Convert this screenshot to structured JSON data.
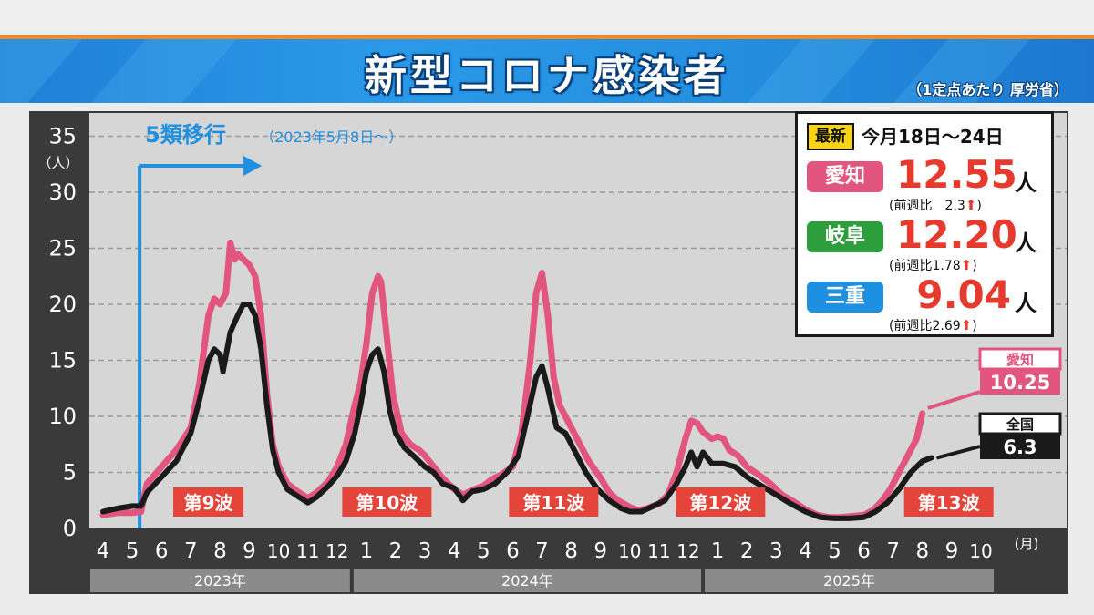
{
  "header": {
    "title": "新型コロナ感染者",
    "note": "（1定点あたり 厚労省）"
  },
  "info_box": {
    "latest_label": "最新",
    "period": "今月18日～24日",
    "unit": "人",
    "rows": [
      {
        "pref": "愛知",
        "value": "12.55",
        "week_label": "(前週比　2.3",
        "ratio": 2.3,
        "close": ")",
        "badge_color": "#e2557e"
      },
      {
        "pref": "岐阜",
        "value": "12.20",
        "week_label": "(前週比1.78",
        "ratio": 1.78,
        "close": ")",
        "badge_color": "#2e9d3b"
      },
      {
        "pref": "三重",
        "value": "9.04",
        "week_label": "(前週比2.69",
        "ratio": 2.69,
        "close": ")",
        "badge_color": "#1f8fe0"
      }
    ]
  },
  "chart_data": {
    "type": "line",
    "y_unit": "（人）",
    "x_unit": "(月)",
    "ylim": [
      0,
      35
    ],
    "yticks": [
      0,
      5,
      10,
      15,
      20,
      25,
      30,
      35
    ],
    "grid": true,
    "month_labels": [
      "4",
      "5",
      "6",
      "7",
      "8",
      "9",
      "10",
      "11",
      "12",
      "1",
      "2",
      "3",
      "4",
      "5",
      "6",
      "7",
      "8",
      "9",
      "10",
      "11",
      "12",
      "1",
      "2",
      "3",
      "4",
      "5",
      "6",
      "7",
      "8",
      "9",
      "10"
    ],
    "years": [
      {
        "label": "2023年",
        "start": 0,
        "end": 9
      },
      {
        "label": "2024年",
        "start": 9,
        "end": 21
      },
      {
        "label": "2025年",
        "start": 21,
        "end": 31
      }
    ],
    "annotation": {
      "title": "5類移行",
      "detail": "（2023年5月8日～）",
      "x": 1.25
    },
    "waves": [
      {
        "label": "第9波",
        "x": 3.6
      },
      {
        "label": "第10波",
        "x": 9.7
      },
      {
        "label": "第11波",
        "x": 15.4
      },
      {
        "label": "第12波",
        "x": 21.1
      },
      {
        "label": "第13波",
        "x": 28.9
      }
    ],
    "series": [
      {
        "name": "愛知",
        "color": "#e2557e",
        "end_label": "10.25",
        "points": [
          [
            0.0,
            1.2
          ],
          [
            0.5,
            1.4
          ],
          [
            1.0,
            1.4
          ],
          [
            1.3,
            1.5
          ],
          [
            1.5,
            4.0
          ],
          [
            2.0,
            5.5
          ],
          [
            2.5,
            7.0
          ],
          [
            3.0,
            9.0
          ],
          [
            3.3,
            13.0
          ],
          [
            3.6,
            19.0
          ],
          [
            3.8,
            20.5
          ],
          [
            4.0,
            20.0
          ],
          [
            4.2,
            21.0
          ],
          [
            4.35,
            25.5
          ],
          [
            4.5,
            24.0
          ],
          [
            4.6,
            24.5
          ],
          [
            4.8,
            24.0
          ],
          [
            5.0,
            23.5
          ],
          [
            5.2,
            22.5
          ],
          [
            5.4,
            19.0
          ],
          [
            5.6,
            12.0
          ],
          [
            5.8,
            7.5
          ],
          [
            6.0,
            5.5
          ],
          [
            6.3,
            4.0
          ],
          [
            6.7,
            3.2
          ],
          [
            7.0,
            2.7
          ],
          [
            7.3,
            3.2
          ],
          [
            7.7,
            4.2
          ],
          [
            8.0,
            5.5
          ],
          [
            8.3,
            7.5
          ],
          [
            8.6,
            11.0
          ],
          [
            8.8,
            13.0
          ],
          [
            9.0,
            16.5
          ],
          [
            9.2,
            21.0
          ],
          [
            9.4,
            22.5
          ],
          [
            9.5,
            22.0
          ],
          [
            9.7,
            17.0
          ],
          [
            9.9,
            12.0
          ],
          [
            10.2,
            8.5
          ],
          [
            10.5,
            7.5
          ],
          [
            10.8,
            7.0
          ],
          [
            11.0,
            6.5
          ],
          [
            11.3,
            5.5
          ],
          [
            11.6,
            4.5
          ],
          [
            12.0,
            3.5
          ],
          [
            12.3,
            3.0
          ],
          [
            12.6,
            3.4
          ],
          [
            13.0,
            3.8
          ],
          [
            13.3,
            4.4
          ],
          [
            13.6,
            4.8
          ],
          [
            14.0,
            5.5
          ],
          [
            14.3,
            8.5
          ],
          [
            14.6,
            15.0
          ],
          [
            14.8,
            21.0
          ],
          [
            15.0,
            22.8
          ],
          [
            15.2,
            19.0
          ],
          [
            15.4,
            13.5
          ],
          [
            15.6,
            11.0
          ],
          [
            16.0,
            9.0
          ],
          [
            16.3,
            7.5
          ],
          [
            16.6,
            6.0
          ],
          [
            17.0,
            4.5
          ],
          [
            17.3,
            3.2
          ],
          [
            17.6,
            2.5
          ],
          [
            18.0,
            1.9
          ],
          [
            18.3,
            1.6
          ],
          [
            18.6,
            1.8
          ],
          [
            19.0,
            2.2
          ],
          [
            19.3,
            3.0
          ],
          [
            19.6,
            5.0
          ],
          [
            19.9,
            8.0
          ],
          [
            20.1,
            9.6
          ],
          [
            20.3,
            9.4
          ],
          [
            20.5,
            8.6
          ],
          [
            20.8,
            8.0
          ],
          [
            21.0,
            8.2
          ],
          [
            21.2,
            8.0
          ],
          [
            21.4,
            7.0
          ],
          [
            21.7,
            6.5
          ],
          [
            22.0,
            5.5
          ],
          [
            22.4,
            4.8
          ],
          [
            22.8,
            4.0
          ],
          [
            23.2,
            3.0
          ],
          [
            23.6,
            2.4
          ],
          [
            24.0,
            1.7
          ],
          [
            24.4,
            1.2
          ],
          [
            24.8,
            1.0
          ],
          [
            25.2,
            1.0
          ],
          [
            25.6,
            1.1
          ],
          [
            26.0,
            1.2
          ],
          [
            26.3,
            1.6
          ],
          [
            26.6,
            2.4
          ],
          [
            26.9,
            3.5
          ],
          [
            27.2,
            5.0
          ],
          [
            27.5,
            6.5
          ],
          [
            27.8,
            8.0
          ],
          [
            28.0,
            10.25
          ]
        ]
      },
      {
        "name": "全国",
        "color": "#1a1a1a",
        "end_label": "6.3",
        "points": [
          [
            0.0,
            1.5
          ],
          [
            0.5,
            1.8
          ],
          [
            1.0,
            2.0
          ],
          [
            1.3,
            2.0
          ],
          [
            1.5,
            3.2
          ],
          [
            2.0,
            4.6
          ],
          [
            2.5,
            6.0
          ],
          [
            3.0,
            8.5
          ],
          [
            3.3,
            11.5
          ],
          [
            3.6,
            15.0
          ],
          [
            3.8,
            16.0
          ],
          [
            4.0,
            15.5
          ],
          [
            4.1,
            14.0
          ],
          [
            4.35,
            17.5
          ],
          [
            4.6,
            19.0
          ],
          [
            4.8,
            20.0
          ],
          [
            5.0,
            20.0
          ],
          [
            5.2,
            19.0
          ],
          [
            5.4,
            16.0
          ],
          [
            5.6,
            11.0
          ],
          [
            5.8,
            7.0
          ],
          [
            6.0,
            5.0
          ],
          [
            6.3,
            3.5
          ],
          [
            6.7,
            2.8
          ],
          [
            7.0,
            2.3
          ],
          [
            7.3,
            2.8
          ],
          [
            7.7,
            3.8
          ],
          [
            8.0,
            4.7
          ],
          [
            8.3,
            6.0
          ],
          [
            8.6,
            8.5
          ],
          [
            8.8,
            11.0
          ],
          [
            9.0,
            14.0
          ],
          [
            9.2,
            15.5
          ],
          [
            9.4,
            16.0
          ],
          [
            9.6,
            14.0
          ],
          [
            9.8,
            10.5
          ],
          [
            10.0,
            8.5
          ],
          [
            10.3,
            7.2
          ],
          [
            10.6,
            6.5
          ],
          [
            11.0,
            5.5
          ],
          [
            11.3,
            5.0
          ],
          [
            11.6,
            4.0
          ],
          [
            12.0,
            3.6
          ],
          [
            12.3,
            2.5
          ],
          [
            12.6,
            3.3
          ],
          [
            13.0,
            3.5
          ],
          [
            13.4,
            4.0
          ],
          [
            13.8,
            5.0
          ],
          [
            14.2,
            6.5
          ],
          [
            14.5,
            10.0
          ],
          [
            14.8,
            13.5
          ],
          [
            15.0,
            14.5
          ],
          [
            15.2,
            12.5
          ],
          [
            15.5,
            9.0
          ],
          [
            15.8,
            8.5
          ],
          [
            16.1,
            7.0
          ],
          [
            16.5,
            5.0
          ],
          [
            16.9,
            3.5
          ],
          [
            17.3,
            2.5
          ],
          [
            17.7,
            1.8
          ],
          [
            18.0,
            1.5
          ],
          [
            18.4,
            1.5
          ],
          [
            18.8,
            2.0
          ],
          [
            19.2,
            2.5
          ],
          [
            19.6,
            4.0
          ],
          [
            19.9,
            5.5
          ],
          [
            20.1,
            6.8
          ],
          [
            20.3,
            5.5
          ],
          [
            20.5,
            6.8
          ],
          [
            20.8,
            5.8
          ],
          [
            21.2,
            5.8
          ],
          [
            21.6,
            5.5
          ],
          [
            22.0,
            4.6
          ],
          [
            22.5,
            3.8
          ],
          [
            23.0,
            3.0
          ],
          [
            23.5,
            2.2
          ],
          [
            24.0,
            1.5
          ],
          [
            24.5,
            1.0
          ],
          [
            25.0,
            0.9
          ],
          [
            25.5,
            0.9
          ],
          [
            26.0,
            1.0
          ],
          [
            26.4,
            1.5
          ],
          [
            26.8,
            2.3
          ],
          [
            27.2,
            3.5
          ],
          [
            27.6,
            5.0
          ],
          [
            28.0,
            6.0
          ],
          [
            28.3,
            6.3
          ]
        ]
      }
    ]
  }
}
